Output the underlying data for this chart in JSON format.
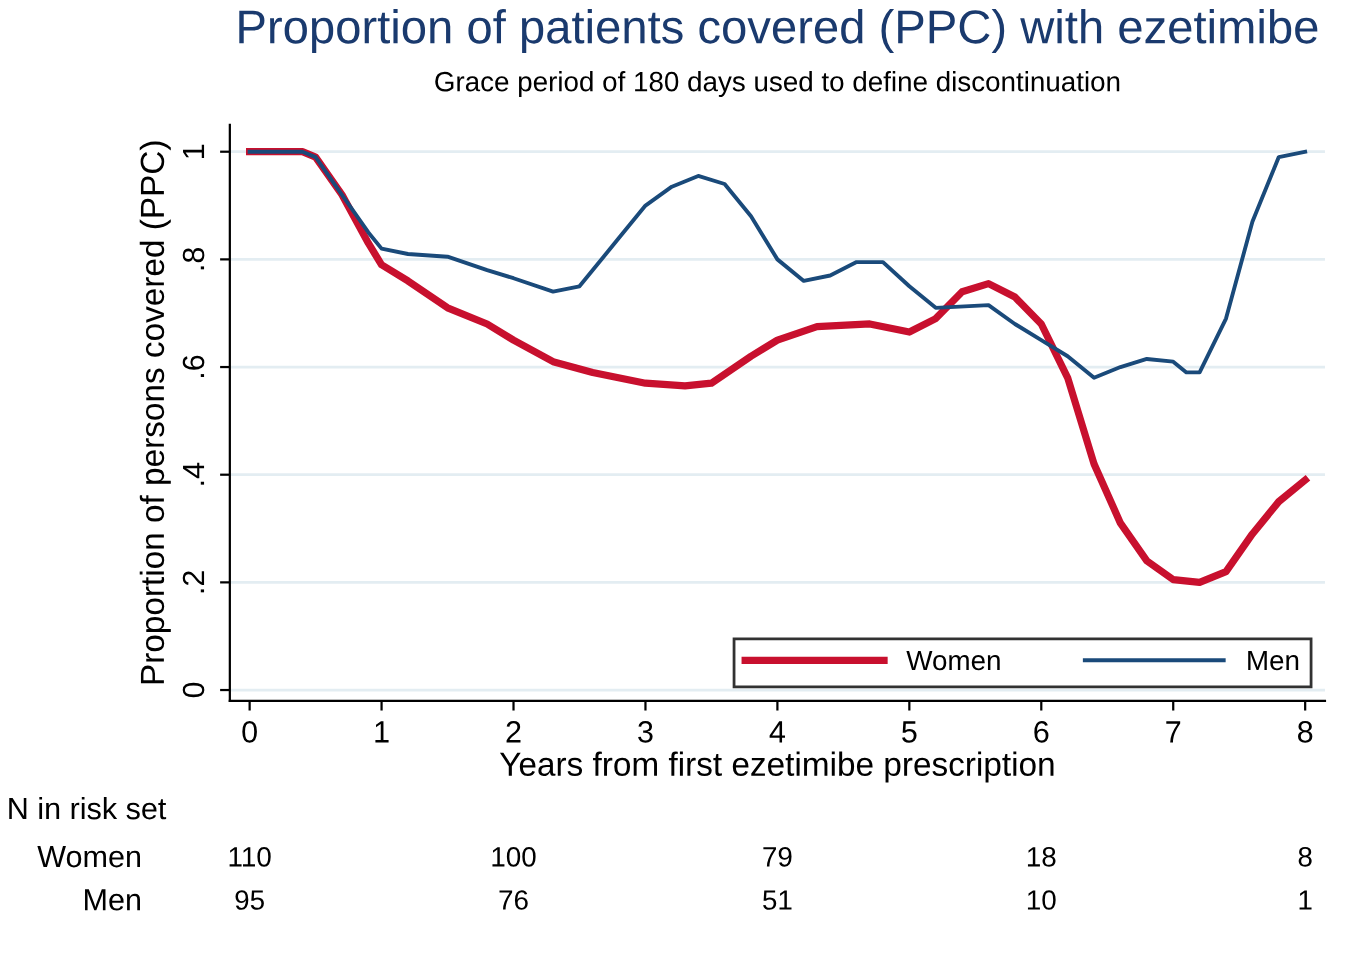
{
  "chart_data": {
    "type": "line",
    "title": "Proportion of patients covered (PPC) with ezetimibe",
    "subtitle": "Grace period of 180 days used to define discontinuation",
    "xlabel": "Years from first ezetimibe prescription",
    "ylabel": "Proportion of persons covered (PPC)",
    "xlim": [
      -0.15,
      8.15
    ],
    "xticks": [
      0,
      1,
      2,
      3,
      4,
      5,
      6,
      7,
      8
    ],
    "ylim": [
      -0.02,
      1.05
    ],
    "yticks": [
      {
        "value": 0,
        "label": "0"
      },
      {
        "value": 0.2,
        "label": ".2"
      },
      {
        "value": 0.4,
        "label": ".4"
      },
      {
        "value": 0.6,
        "label": ".6"
      },
      {
        "value": 0.8,
        "label": ".8"
      },
      {
        "value": 1,
        "label": "1"
      }
    ],
    "grid": "y",
    "legend": "bottom right",
    "line_style": "solid",
    "marker": "none",
    "series": [
      {
        "name": "Women",
        "color": "#c8102e",
        "x": [
          0,
          0.4,
          0.5,
          0.7,
          0.9,
          1.0,
          1.2,
          1.5,
          1.8,
          2.0,
          2.3,
          2.6,
          3.0,
          3.3,
          3.5,
          3.8,
          4.0,
          4.3,
          4.7,
          5.0,
          5.2,
          5.4,
          5.6,
          5.8,
          6.0,
          6.2,
          6.4,
          6.6,
          6.8,
          7.0,
          7.2,
          7.4,
          7.6,
          7.8,
          8.0
        ],
        "values": [
          1,
          1,
          0.99,
          0.92,
          0.83,
          0.79,
          0.76,
          0.71,
          0.68,
          0.65,
          0.61,
          0.59,
          0.57,
          0.565,
          0.57,
          0.62,
          0.65,
          0.675,
          0.68,
          0.665,
          0.69,
          0.74,
          0.755,
          0.73,
          0.68,
          0.58,
          0.42,
          0.31,
          0.24,
          0.205,
          0.2,
          0.22,
          0.29,
          0.35,
          0.39
        ]
      },
      {
        "name": "Men",
        "color": "#1a4a7a",
        "x": [
          0,
          0.4,
          0.5,
          0.7,
          0.9,
          1.0,
          1.2,
          1.5,
          1.8,
          2.0,
          2.3,
          2.5,
          2.8,
          3.0,
          3.2,
          3.4,
          3.6,
          3.8,
          4.0,
          4.2,
          4.4,
          4.6,
          4.8,
          5.0,
          5.2,
          5.6,
          5.8,
          6.0,
          6.2,
          6.4,
          6.6,
          6.8,
          7.0,
          7.1,
          7.2,
          7.4,
          7.6,
          7.8,
          8.0
        ],
        "values": [
          1,
          1,
          0.99,
          0.92,
          0.85,
          0.82,
          0.81,
          0.805,
          0.78,
          0.765,
          0.74,
          0.75,
          0.84,
          0.9,
          0.935,
          0.955,
          0.94,
          0.88,
          0.8,
          0.76,
          0.77,
          0.795,
          0.795,
          0.75,
          0.71,
          0.715,
          0.68,
          0.65,
          0.62,
          0.58,
          0.6,
          0.615,
          0.61,
          0.59,
          0.59,
          0.69,
          0.87,
          0.99,
          1
        ]
      }
    ],
    "annotations": [
      "N in risk set",
      "Women",
      "110",
      "100",
      "79",
      "18",
      "8",
      "Men",
      "95",
      "76",
      "51",
      "10",
      "1"
    ]
  }
}
